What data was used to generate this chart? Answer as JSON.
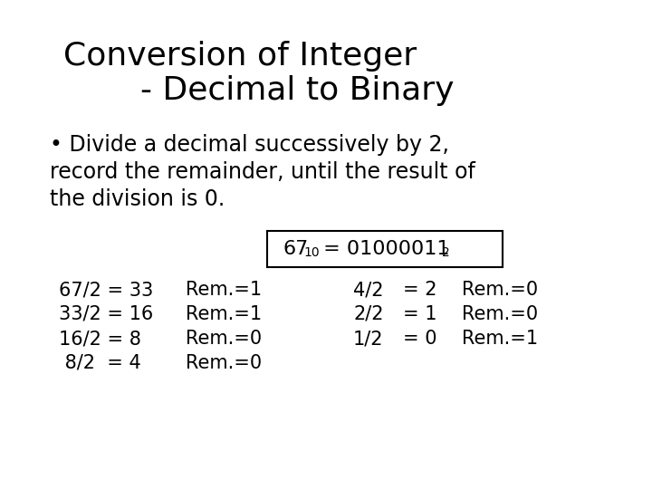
{
  "title_line1": "Conversion of Integer",
  "title_line2": "- Decimal to Binary",
  "bullet_text_line1": "• Divide a decimal successively by 2,",
  "bullet_text_line2": "record the remainder, until the result of",
  "bullet_text_line3": "the division is 0.",
  "left_col": [
    "67/2 = 33",
    "33/2 = 16",
    "16/2 = 8",
    " 8/2  = 4"
  ],
  "left_rem": [
    "Rem.=1",
    "Rem.=1",
    "Rem.=0",
    "Rem.=0"
  ],
  "right_col": [
    "4/2",
    "2/2",
    "1/2"
  ],
  "right_eq": [
    "= 2",
    "= 1",
    "= 0"
  ],
  "right_rem": [
    "Rem.=0",
    "Rem.=0",
    "Rem.=1"
  ],
  "bg_color": "#ffffff",
  "text_color": "#000000",
  "title_fontsize": 26,
  "body_fontsize": 17,
  "table_fontsize": 15,
  "formula_fontsize": 16,
  "formula_sub_fontsize": 10
}
